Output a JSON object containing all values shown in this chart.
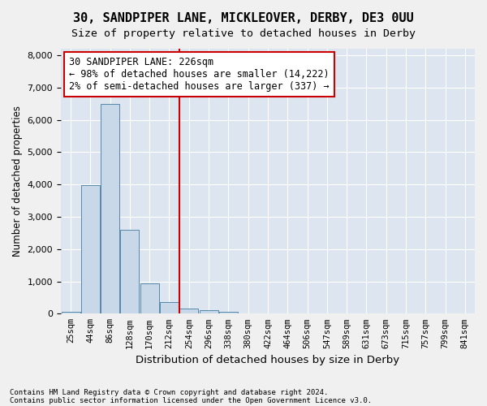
{
  "title1": "30, SANDPIPER LANE, MICKLEOVER, DERBY, DE3 0UU",
  "title2": "Size of property relative to detached houses in Derby",
  "xlabel": "Distribution of detached houses by size in Derby",
  "ylabel": "Number of detached properties",
  "annotation_line1": "30 SANDPIPER LANE: 226sqm",
  "annotation_line2": "← 98% of detached houses are smaller (14,222)",
  "annotation_line3": "2% of semi-detached houses are larger (337) →",
  "property_size": 226,
  "footnote1": "Contains HM Land Registry data © Crown copyright and database right 2024.",
  "footnote2": "Contains public sector information licensed under the Open Government Licence v3.0.",
  "bin_labels": [
    "25sqm",
    "44sqm",
    "86sqm",
    "128sqm",
    "170sqm",
    "212sqm",
    "254sqm",
    "296sqm",
    "338sqm",
    "380sqm",
    "422sqm",
    "464sqm",
    "506sqm",
    "547sqm",
    "589sqm",
    "631sqm",
    "673sqm",
    "715sqm",
    "757sqm",
    "799sqm",
    "841sqm"
  ],
  "counts": [
    50,
    3980,
    6500,
    2600,
    950,
    350,
    150,
    100,
    55,
    15,
    5,
    2,
    1,
    0,
    0,
    0,
    0,
    0,
    0,
    0,
    0
  ],
  "bar_color": "#c8d8e8",
  "bar_edge_color": "#5588aa",
  "vline_color": "#cc0000",
  "vline_x": 5.5,
  "annotation_box_color": "#cc0000",
  "ylim": [
    0,
    8200
  ],
  "yticks": [
    0,
    1000,
    2000,
    3000,
    4000,
    5000,
    6000,
    7000,
    8000
  ],
  "background_color": "#dde6f0",
  "grid_color": "#ffffff",
  "fig_bg_color": "#f0f0f0",
  "title1_fontsize": 11,
  "title2_fontsize": 9.5,
  "annotation_fontsize": 8.5,
  "ylabel_fontsize": 8.5,
  "xlabel_fontsize": 9.5
}
